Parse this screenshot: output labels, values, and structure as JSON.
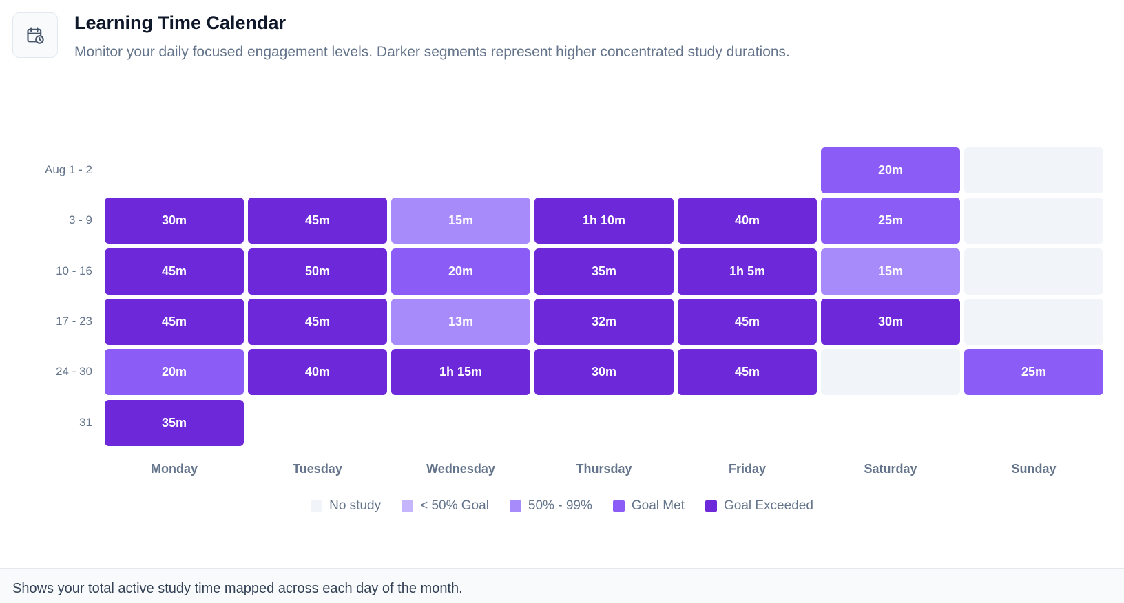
{
  "header": {
    "title": "Learning Time Calendar",
    "subtitle": "Monitor your daily focused engagement levels. Darker segments represent higher concentrated study durations.",
    "icon": "calendar-clock-icon"
  },
  "footer": {
    "text": "Shows your total active study time mapped across each day of the month."
  },
  "colors": {
    "no_study": "#f1f5f9",
    "under_50": "#c4b5fd",
    "between_50_99": "#a78bfa",
    "goal_met": "#8b5cf6",
    "goal_exceeded": "#6d28d9"
  },
  "chart_data": {
    "type": "heatmap",
    "days": [
      "Monday",
      "Tuesday",
      "Wednesday",
      "Thursday",
      "Friday",
      "Saturday",
      "Sunday"
    ],
    "legend": [
      {
        "label": "No study",
        "level": "none"
      },
      {
        "label": "< 50% Goal",
        "level": "under_50"
      },
      {
        "label": "50% - 99%",
        "level": "between_50_99"
      },
      {
        "label": "Goal Met",
        "level": "goal_met"
      },
      {
        "label": "Goal Exceeded",
        "level": "goal_exceeded"
      }
    ],
    "weeks": [
      {
        "label": "Aug 1 - 2",
        "cells": [
          null,
          null,
          null,
          null,
          null,
          {
            "text": "20m",
            "minutes": 20,
            "level": "goal_met"
          },
          {
            "text": "",
            "minutes": 0,
            "level": "none"
          }
        ]
      },
      {
        "label": "3 - 9",
        "cells": [
          {
            "text": "30m",
            "minutes": 30,
            "level": "goal_exceeded"
          },
          {
            "text": "45m",
            "minutes": 45,
            "level": "goal_exceeded"
          },
          {
            "text": "15m",
            "minutes": 15,
            "level": "between_50_99"
          },
          {
            "text": "1h 10m",
            "minutes": 70,
            "level": "goal_exceeded"
          },
          {
            "text": "40m",
            "minutes": 40,
            "level": "goal_exceeded"
          },
          {
            "text": "25m",
            "minutes": 25,
            "level": "goal_met"
          },
          {
            "text": "",
            "minutes": 0,
            "level": "none"
          }
        ]
      },
      {
        "label": "10 - 16",
        "cells": [
          {
            "text": "45m",
            "minutes": 45,
            "level": "goal_exceeded"
          },
          {
            "text": "50m",
            "minutes": 50,
            "level": "goal_exceeded"
          },
          {
            "text": "20m",
            "minutes": 20,
            "level": "goal_met"
          },
          {
            "text": "35m",
            "minutes": 35,
            "level": "goal_exceeded"
          },
          {
            "text": "1h 5m",
            "minutes": 65,
            "level": "goal_exceeded"
          },
          {
            "text": "15m",
            "minutes": 15,
            "level": "between_50_99"
          },
          {
            "text": "",
            "minutes": 0,
            "level": "none"
          }
        ]
      },
      {
        "label": "17 - 23",
        "cells": [
          {
            "text": "45m",
            "minutes": 45,
            "level": "goal_exceeded"
          },
          {
            "text": "45m",
            "minutes": 45,
            "level": "goal_exceeded"
          },
          {
            "text": "13m",
            "minutes": 13,
            "level": "between_50_99"
          },
          {
            "text": "32m",
            "minutes": 32,
            "level": "goal_exceeded"
          },
          {
            "text": "45m",
            "minutes": 45,
            "level": "goal_exceeded"
          },
          {
            "text": "30m",
            "minutes": 30,
            "level": "goal_exceeded"
          },
          {
            "text": "",
            "minutes": 0,
            "level": "none"
          }
        ]
      },
      {
        "label": "24 - 30",
        "cells": [
          {
            "text": "20m",
            "minutes": 20,
            "level": "goal_met"
          },
          {
            "text": "40m",
            "minutes": 40,
            "level": "goal_exceeded"
          },
          {
            "text": "1h 15m",
            "minutes": 75,
            "level": "goal_exceeded"
          },
          {
            "text": "30m",
            "minutes": 30,
            "level": "goal_exceeded"
          },
          {
            "text": "45m",
            "minutes": 45,
            "level": "goal_exceeded"
          },
          {
            "text": "",
            "minutes": 0,
            "level": "none"
          },
          {
            "text": "25m",
            "minutes": 25,
            "level": "goal_met"
          }
        ]
      },
      {
        "label": "31",
        "cells": [
          {
            "text": "35m",
            "minutes": 35,
            "level": "goal_exceeded"
          },
          null,
          null,
          null,
          null,
          null,
          null
        ]
      }
    ]
  }
}
